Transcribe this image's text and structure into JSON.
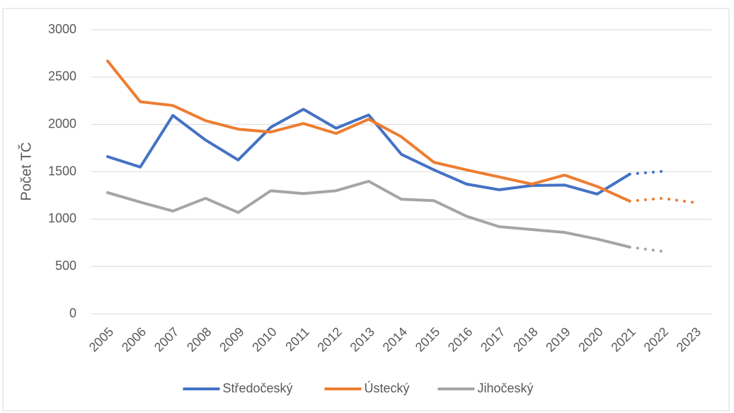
{
  "chart_data": {
    "type": "line",
    "y_label": "Počet TČ",
    "categories": [
      "2005",
      "2006",
      "2007",
      "2008",
      "2009",
      "2010",
      "2011",
      "2012",
      "2013",
      "2014",
      "2015",
      "2016",
      "2017",
      "2018",
      "2019",
      "2020",
      "2021",
      "2022",
      "2023"
    ],
    "series": [
      {
        "name": "Středočeský",
        "color": "#4472c4",
        "values": [
          1660,
          1550,
          2095,
          1835,
          1625,
          1970,
          2160,
          1960,
          2100,
          1685,
          1520,
          1370,
          1310,
          1355,
          1360,
          1265,
          1475,
          null,
          null
        ],
        "forecast": [
          null,
          null,
          null,
          null,
          null,
          null,
          null,
          null,
          null,
          null,
          null,
          null,
          null,
          null,
          null,
          null,
          null,
          1505,
          null
        ]
      },
      {
        "name": "Ústecký",
        "color": "#ed7d31",
        "values": [
          2670,
          2240,
          2200,
          2040,
          1950,
          1920,
          2010,
          1905,
          2055,
          1870,
          1600,
          1520,
          1445,
          1370,
          1465,
          1345,
          1190,
          null,
          null
        ],
        "forecast": [
          null,
          null,
          null,
          null,
          null,
          null,
          null,
          null,
          null,
          null,
          null,
          null,
          null,
          null,
          null,
          null,
          null,
          1220,
          1175
        ]
      },
      {
        "name": "Jihočeský",
        "color": "#a5a5a5",
        "values": [
          1280,
          1180,
          1085,
          1220,
          1070,
          1300,
          1270,
          1300,
          1400,
          1210,
          1195,
          1030,
          920,
          890,
          860,
          790,
          705,
          null,
          null
        ],
        "forecast": [
          null,
          null,
          null,
          null,
          null,
          null,
          null,
          null,
          null,
          null,
          null,
          null,
          null,
          null,
          null,
          null,
          null,
          660,
          null
        ]
      }
    ],
    "ylim": [
      0,
      3000
    ],
    "yticks": [
      0,
      500,
      1000,
      1500,
      2000,
      2500,
      3000
    ],
    "grid": true,
    "legend": "bottom"
  }
}
